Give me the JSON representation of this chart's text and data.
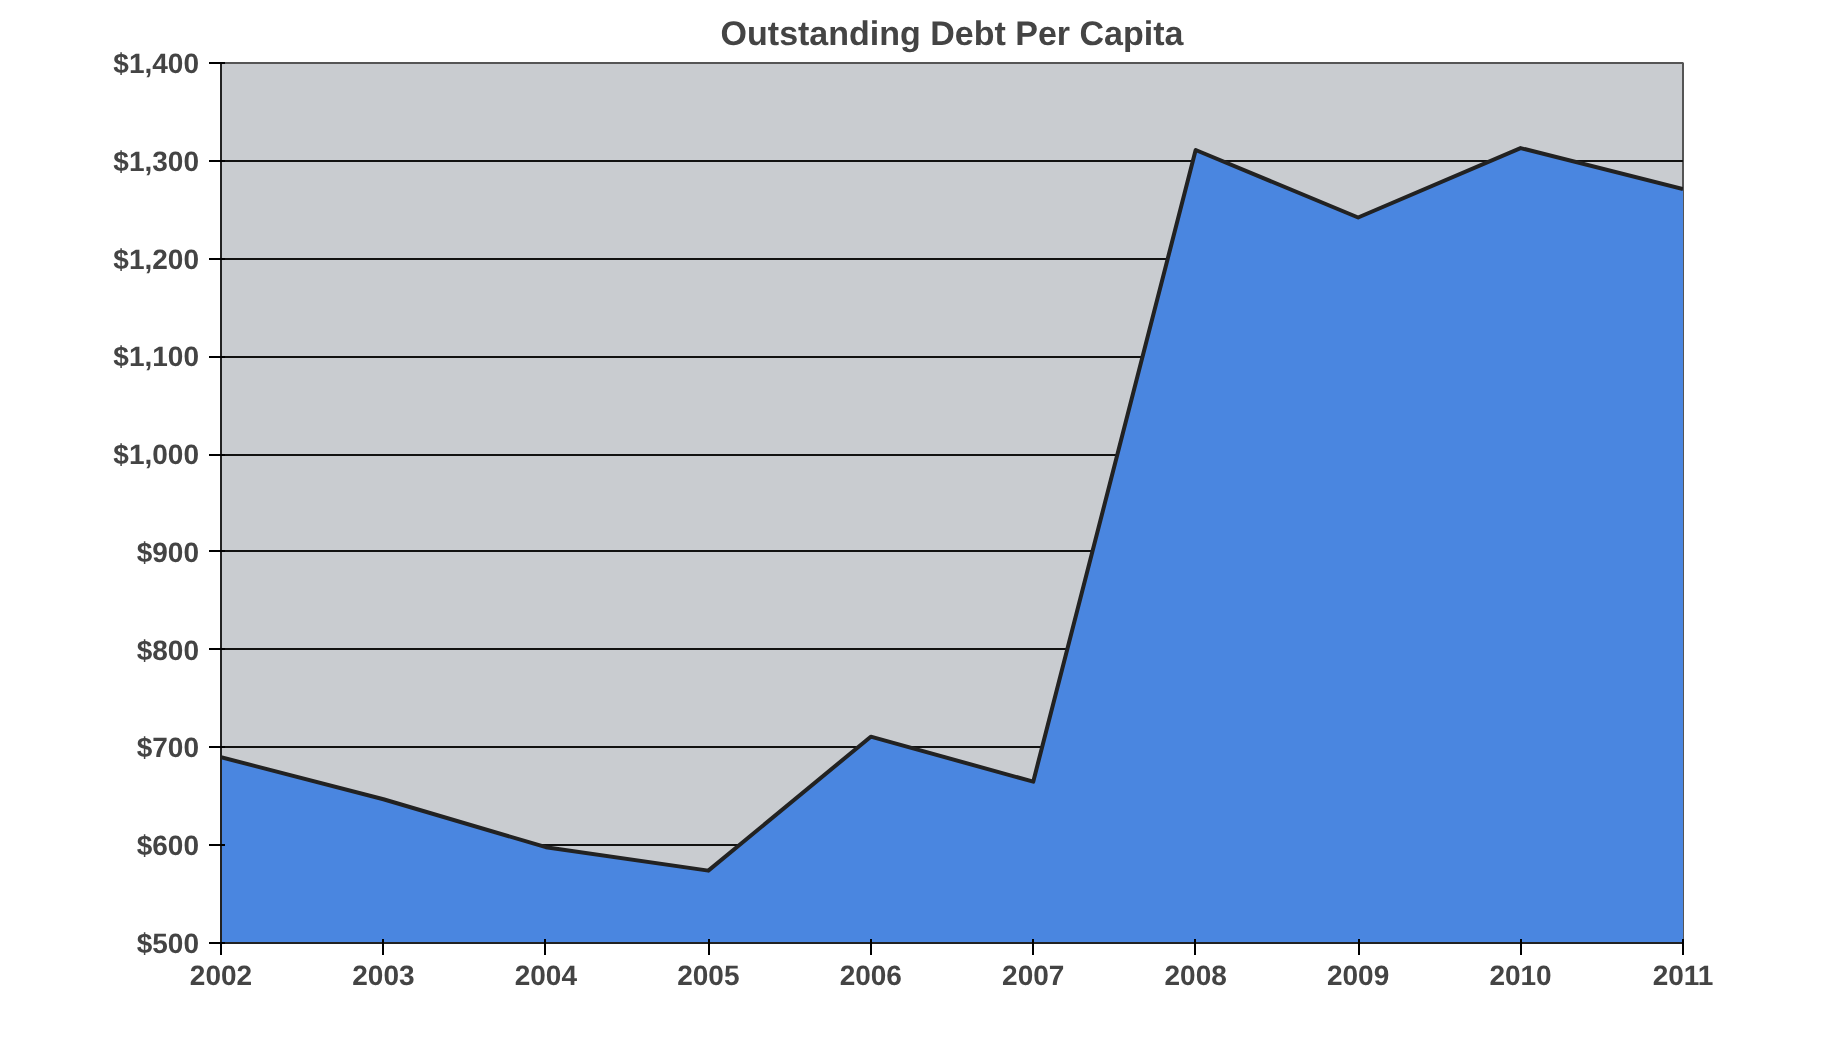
{
  "chart_data": {
    "type": "area",
    "title": "Outstanding Debt Per Capita",
    "categories": [
      "2002",
      "2003",
      "2004",
      "2005",
      "2006",
      "2007",
      "2008",
      "2009",
      "2010",
      "2011"
    ],
    "series": [
      {
        "color": "#4a86e0",
        "values": [
          690,
          647,
          598,
          574,
          711,
          665,
          1311,
          1242,
          1313,
          1271
        ]
      }
    ],
    "ylim": [
      500,
      1400
    ],
    "yticks": [
      {
        "value": 500,
        "label": "$500"
      },
      {
        "value": 600,
        "label": "$600"
      },
      {
        "value": 700,
        "label": "$700"
      },
      {
        "value": 800,
        "label": "$800"
      },
      {
        "value": 900,
        "label": "$900"
      },
      {
        "value": 1000,
        "label": "$1,000"
      },
      {
        "value": 1100,
        "label": "$1,100"
      },
      {
        "value": 1200,
        "label": "$1,200"
      },
      {
        "value": 1300,
        "label": "$1,300"
      },
      {
        "value": 1400,
        "label": "$1,400"
      }
    ],
    "grid": "y"
  }
}
